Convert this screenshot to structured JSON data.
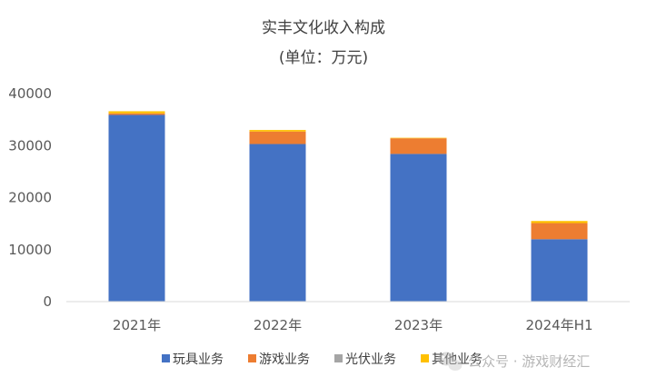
{
  "chart_data": {
    "type": "bar",
    "stacked": true,
    "title": "实丰文化收入构成",
    "subtitle": "(单位：万元)",
    "categories": [
      "2021年",
      "2022年",
      "2023年",
      "2024年H1"
    ],
    "series": [
      {
        "name": "玩具业务",
        "color": "#4472C4",
        "values": [
          35900,
          30300,
          28400,
          12000
        ]
      },
      {
        "name": "游戏业务",
        "color": "#ED7D31",
        "values": [
          300,
          2400,
          3000,
          3100
        ]
      },
      {
        "name": "光伏业务",
        "color": "#A5A5A5",
        "values": [
          0,
          0,
          0,
          0
        ]
      },
      {
        "name": "其他业务",
        "color": "#FFC000",
        "values": [
          400,
          300,
          100,
          400
        ]
      }
    ],
    "ylim": [
      0,
      40000
    ],
    "yticks": [
      0,
      10000,
      20000,
      30000,
      40000
    ],
    "grid": false,
    "legend_position": "bottom",
    "xlabel": "",
    "ylabel": ""
  },
  "watermark": {
    "text": "公众号 · 游戏财经汇",
    "icon": "wechat-icon"
  }
}
